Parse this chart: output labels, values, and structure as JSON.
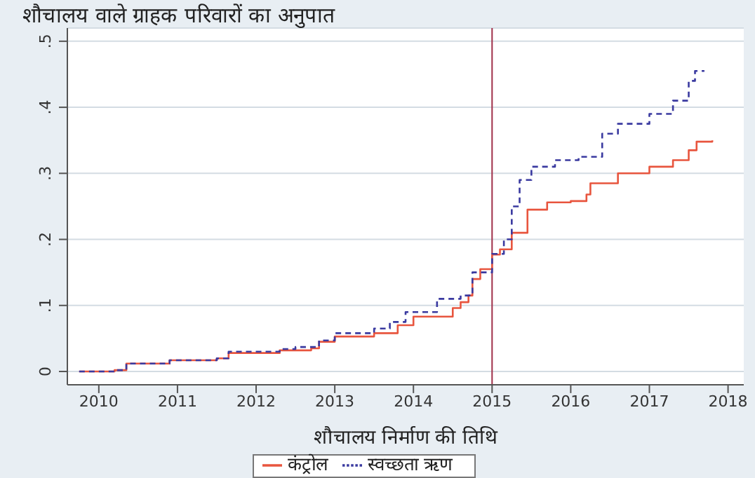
{
  "chart_data": {
    "type": "step",
    "title": "शौचालय वाले ग्राहक परिवारों का अनुपात",
    "xlabel": "शौचालय निर्माण की तिथि",
    "xlim": [
      2009.6,
      2018.2
    ],
    "xticks": [
      2010,
      2011,
      2012,
      2013,
      2014,
      2015,
      2016,
      2017,
      2018
    ],
    "ylim": [
      -0.02,
      0.52
    ],
    "yticks": [
      0,
      {
        "value": 0.1,
        "label": ".1"
      },
      {
        "value": 0.2,
        "label": ".2"
      },
      {
        "value": 0.3,
        "label": ".3"
      },
      {
        "value": 0.4,
        "label": ".4"
      },
      {
        "value": 0.5,
        "label": ".5"
      }
    ],
    "grid": "y",
    "legend": "bottom",
    "ref_lines": [
      {
        "axis": "x",
        "value": 2015,
        "color": "#a0304a"
      }
    ],
    "series": [
      {
        "name": "कंट्रोल",
        "color": "#e8553e",
        "line_style": "solid",
        "x": [
          2009.75,
          2010.2,
          2010.35,
          2010.9,
          2011.5,
          2011.65,
          2012.3,
          2012.7,
          2012.8,
          2013.0,
          2013.5,
          2013.8,
          2014.0,
          2014.5,
          2014.6,
          2014.7,
          2014.75,
          2014.85,
          2015.0,
          2015.1,
          2015.25,
          2015.45,
          2015.7,
          2016.0,
          2016.2,
          2016.25,
          2016.6,
          2017.0,
          2017.3,
          2017.5,
          2017.6,
          2017.8
        ],
        "values": [
          0,
          0.002,
          0.012,
          0.017,
          0.02,
          0.028,
          0.032,
          0.035,
          0.045,
          0.053,
          0.058,
          0.07,
          0.083,
          0.096,
          0.105,
          0.115,
          0.14,
          0.155,
          0.177,
          0.185,
          0.21,
          0.245,
          0.256,
          0.258,
          0.268,
          0.285,
          0.3,
          0.31,
          0.32,
          0.335,
          0.348,
          0.35
        ]
      },
      {
        "name": "स्वच्छता ऋण",
        "color": "#3a3aa0",
        "line_style": "dashed",
        "x": [
          2009.75,
          2010.2,
          2010.35,
          2010.9,
          2011.5,
          2011.65,
          2012.3,
          2012.5,
          2012.8,
          2013.0,
          2013.5,
          2013.7,
          2013.9,
          2014.3,
          2014.6,
          2014.75,
          2015.0,
          2015.15,
          2015.25,
          2015.35,
          2015.5,
          2015.8,
          2016.1,
          2016.4,
          2016.6,
          2017.0,
          2017.3,
          2017.5,
          2017.58,
          2017.7
        ],
        "values": [
          0,
          0.002,
          0.012,
          0.017,
          0.02,
          0.03,
          0.034,
          0.037,
          0.047,
          0.058,
          0.065,
          0.075,
          0.09,
          0.11,
          0.115,
          0.15,
          0.178,
          0.2,
          0.25,
          0.29,
          0.31,
          0.32,
          0.325,
          0.36,
          0.375,
          0.39,
          0.41,
          0.44,
          0.455,
          0.455
        ]
      }
    ]
  }
}
